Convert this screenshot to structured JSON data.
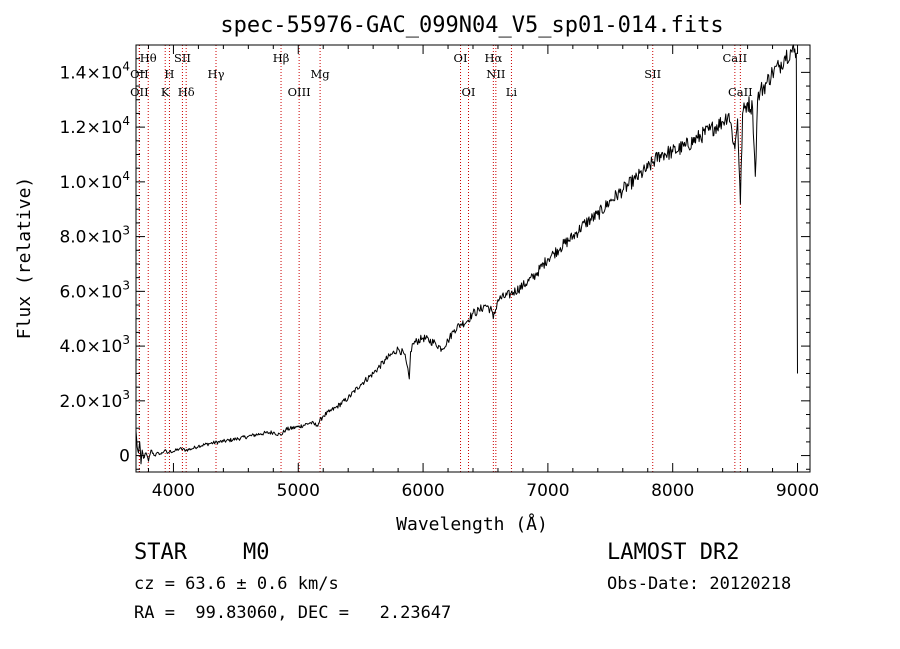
{
  "chart_data": {
    "type": "line",
    "title": "spec-55976-GAC_099N04_V5_sp01-014.fits",
    "xlabel": "Wavelength (Å)",
    "ylabel": "Flux (relative)",
    "xlim": [
      3700,
      9100
    ],
    "ylim": [
      -600,
      15000
    ],
    "x_ticks": [
      {
        "value": 4000,
        "label": "4000"
      },
      {
        "value": 5000,
        "label": "5000"
      },
      {
        "value": 6000,
        "label": "6000"
      },
      {
        "value": 7000,
        "label": "7000"
      },
      {
        "value": 8000,
        "label": "8000"
      },
      {
        "value": 9000,
        "label": "9000"
      }
    ],
    "y_ticks": [
      {
        "value": 0,
        "base": "0",
        "exp": ""
      },
      {
        "value": 2000,
        "base": "2.0×10",
        "exp": "3"
      },
      {
        "value": 4000,
        "base": "4.0×10",
        "exp": "3"
      },
      {
        "value": 6000,
        "base": "6.0×10",
        "exp": "3"
      },
      {
        "value": 8000,
        "base": "8.0×10",
        "exp": "3"
      },
      {
        "value": 10000,
        "base": "1.0×10",
        "exp": "4"
      },
      {
        "value": 12000,
        "base": "1.2×10",
        "exp": "4"
      },
      {
        "value": 14000,
        "base": "1.4×10",
        "exp": "4"
      }
    ],
    "grid": false,
    "series": [
      {
        "color": "#000000",
        "x": [
          3700,
          3710,
          3720,
          3730,
          3740,
          3750,
          3760,
          3780,
          3800,
          3820,
          3850,
          3880,
          3900,
          3930,
          3950,
          3970,
          4000,
          4050,
          4100,
          4150,
          4200,
          4300,
          4400,
          4500,
          4600,
          4700,
          4800,
          4860,
          4900,
          5000,
          5100,
          5150,
          5200,
          5250,
          5300,
          5400,
          5500,
          5600,
          5700,
          5800,
          5850,
          5890,
          5900,
          5920,
          6000,
          6100,
          6150,
          6200,
          6250,
          6300,
          6350,
          6400,
          6450,
          6500,
          6550,
          6563,
          6600,
          6700,
          6800,
          6900,
          7000,
          7050,
          7100,
          7200,
          7300,
          7400,
          7500,
          7600,
          7700,
          7800,
          7900,
          8000,
          8100,
          8200,
          8300,
          8400,
          8450,
          8498,
          8520,
          8542,
          8560,
          8600,
          8640,
          8662,
          8680,
          8700,
          8750,
          8800,
          8850,
          8900,
          8950,
          8990,
          9000
        ],
        "y": [
          900,
          300,
          100,
          500,
          -300,
          200,
          -100,
          100,
          -200,
          200,
          0,
          100,
          50,
          200,
          80,
          150,
          150,
          250,
          200,
          250,
          350,
          450,
          520,
          600,
          700,
          800,
          850,
          750,
          950,
          1050,
          1200,
          1100,
          1450,
          1600,
          1750,
          2100,
          2600,
          3000,
          3500,
          3900,
          3700,
          2800,
          3800,
          4100,
          4300,
          4100,
          3900,
          4200,
          4600,
          4800,
          4900,
          5200,
          5300,
          5500,
          5300,
          5000,
          5700,
          5900,
          6200,
          6600,
          7200,
          7400,
          7600,
          8000,
          8500,
          8800,
          9300,
          9700,
          10100,
          10500,
          11000,
          11100,
          11300,
          11600,
          11900,
          12200,
          12500,
          11200,
          12300,
          9200,
          12500,
          12900,
          12700,
          10200,
          13000,
          13300,
          13600,
          14000,
          14200,
          14600,
          14800,
          14700,
          3000
        ]
      }
    ],
    "line_markers": [
      {
        "label": "Hθ",
        "x": 3798,
        "row": 1
      },
      {
        "label": "OII",
        "x": 3727,
        "row": 2
      },
      {
        "label": "OII",
        "x": 3727,
        "row": 3
      },
      {
        "label": "H",
        "x": 3968,
        "row": 2
      },
      {
        "label": "K",
        "x": 3934,
        "row": 3
      },
      {
        "label": "SII",
        "x": 4072,
        "row": 1
      },
      {
        "label": "Hδ",
        "x": 4102,
        "row": 3
      },
      {
        "label": "Hγ",
        "x": 4341,
        "row": 2
      },
      {
        "label": "Hβ",
        "x": 4862,
        "row": 1
      },
      {
        "label": "OIII",
        "x": 5007,
        "row": 3
      },
      {
        "label": "Mg",
        "x": 5175,
        "row": 2
      },
      {
        "label": "OI",
        "x": 6300,
        "row": 1
      },
      {
        "label": "OI",
        "x": 6364,
        "row": 3
      },
      {
        "label": "Hα",
        "x": 6563,
        "row": 1
      },
      {
        "label": "NII",
        "x": 6583,
        "row": 2
      },
      {
        "label": "Li",
        "x": 6708,
        "row": 3
      },
      {
        "label": "SII",
        "x": 7840,
        "row": 2
      },
      {
        "label": "CaII",
        "x": 8498,
        "row": 1
      },
      {
        "label": "CaII",
        "x": 8542,
        "row": 3
      }
    ],
    "marker_color": "#cc0000"
  },
  "info": {
    "class": "STAR",
    "subclass": "M0",
    "survey": "LAMOST DR2",
    "cz": "cz = 63.6 ± 0.6 km/s",
    "obs_date": "Obs-Date: 20120218",
    "radec": "RA =  99.83060, DEC =   2.23647"
  }
}
